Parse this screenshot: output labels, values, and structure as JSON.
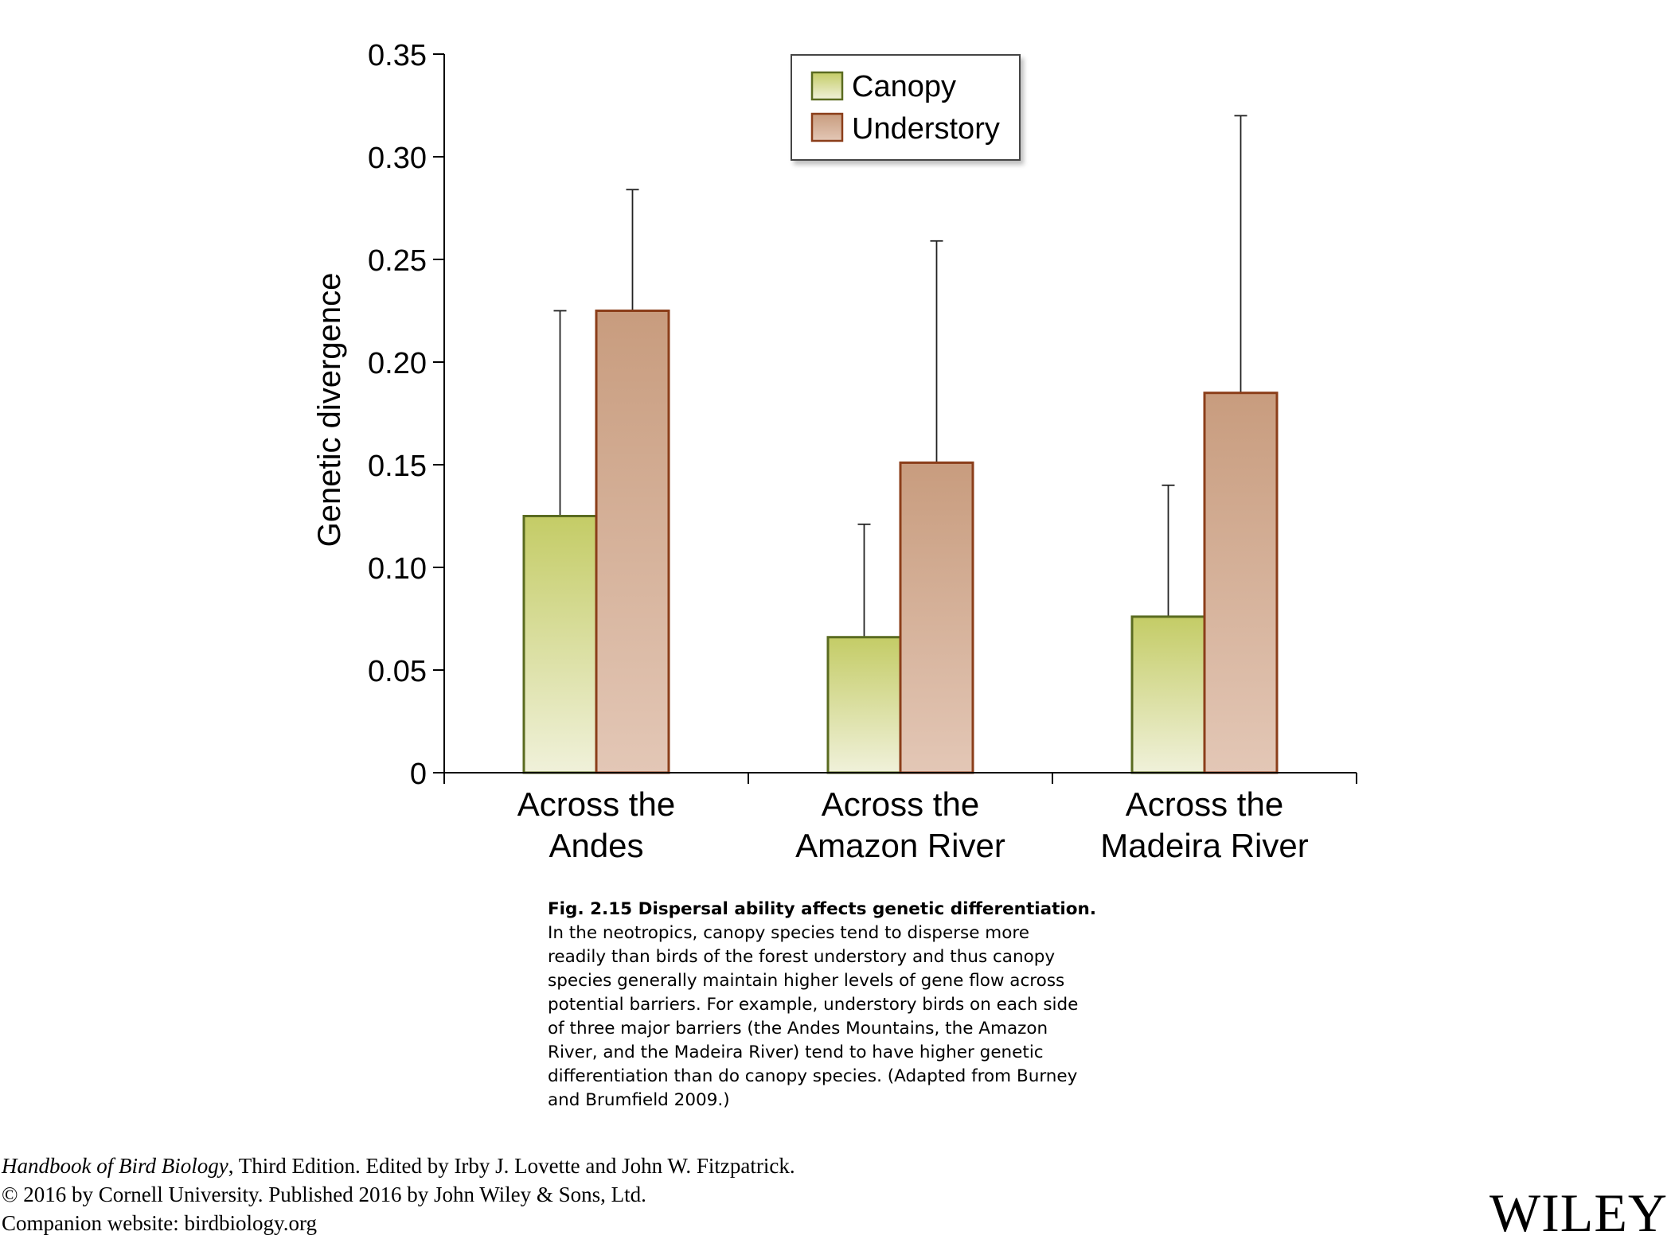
{
  "chart_data": {
    "type": "bar",
    "categories": [
      "Across the\nAndes",
      "Across the\nAmazon River",
      "Across the\nMadeira River"
    ],
    "series": [
      {
        "name": "Canopy",
        "values": [
          0.125,
          0.066,
          0.076
        ],
        "error_upper": [
          0.225,
          0.121,
          0.14
        ],
        "color": "#c5cc6a"
      },
      {
        "name": "Understory",
        "values": [
          0.225,
          0.151,
          0.185
        ],
        "error_upper": [
          0.284,
          0.259,
          0.32
        ],
        "color": "#c89a7c"
      }
    ],
    "ylabel": "Genetic divergence",
    "xlabel": "",
    "ylim": [
      0,
      0.35
    ],
    "yticks": [
      "0",
      "0.05",
      "0.10",
      "0.15",
      "0.20",
      "0.25",
      "0.30",
      "0.35"
    ],
    "legend_position": "top-center",
    "grid": false
  },
  "caption": {
    "title": "Fig. 2.15  Dispersal ability affects genetic differentiation.",
    "lines": [
      "In the neotropics, canopy species tend to disperse more",
      "readily than birds of the forest understory and thus canopy",
      "species generally maintain higher levels of gene flow across",
      "potential barriers. For example, understory birds on each side",
      "of three major barriers (the Andes Mountains, the Amazon",
      "River, and the Madeira River) tend to have higher genetic",
      "differentiation than do canopy species. (Adapted from Burney",
      "and Brumfield 2009.)"
    ]
  },
  "citation": {
    "book_title": "Handbook of Bird Biology",
    "line1_rest": ", Third Edition. Edited by Irby J. Lovette and John W. Fitzpatrick.",
    "line2": "© 2016 by Cornell University. Published 2016 by John Wiley & Sons, Ltd.",
    "line3": "Companion website: birdbiology.org"
  },
  "publisher_logo": "WILEY"
}
